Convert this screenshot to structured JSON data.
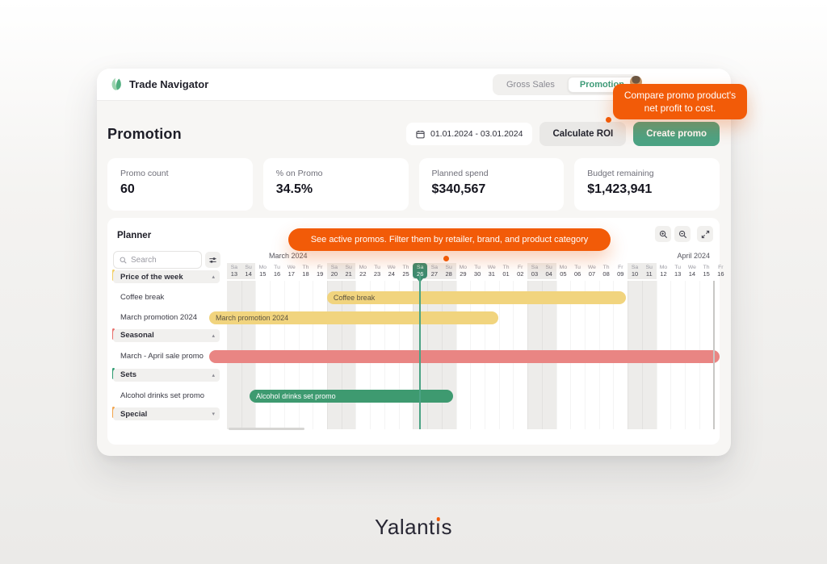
{
  "colors": {
    "orange": "#F25B08",
    "green_button": "#4BA384",
    "today_green": "#3D8B70",
    "yellow_bar": "#F1D47E",
    "red_bar": "#E98583",
    "green_bar": "#3E9A70",
    "accent_yellow": "#F2CE63",
    "accent_red": "#E9706C",
    "accent_green": "#2E9B70",
    "accent_orange": "#F2A44C"
  },
  "header": {
    "app_name": "Trade Navigator",
    "tabs": [
      {
        "label": "Gross Sales",
        "active": false
      },
      {
        "label": "Promotion",
        "active": true
      }
    ]
  },
  "roi_tooltip": {
    "text": "Compare promo product's net profit to cost."
  },
  "page": {
    "title": "Promotion",
    "date_range": "01.01.2024 - 03.01.2024",
    "calculate_roi": "Calculate ROI",
    "create_promo": "Create promo"
  },
  "stats": [
    {
      "label": "Promo count",
      "value": "60"
    },
    {
      "label": "% on Promo",
      "value": "34.5%"
    },
    {
      "label": "Planned spend",
      "value": "$340,567"
    },
    {
      "label": "Budget remaining",
      "value": "$1,423,941"
    }
  ],
  "planner": {
    "title": "Planner",
    "tooltip": "See active promos. Filter them by retailer, brand, and product category",
    "search_placeholder": "Search",
    "groups": [
      {
        "name": "Price of the week",
        "accent": "accent_yellow",
        "collapsed": false,
        "items": [
          "Coffee break",
          "March promotion 2024"
        ]
      },
      {
        "name": "Seasonal",
        "accent": "accent_red",
        "collapsed": false,
        "items": [
          "March - April sale promo"
        ]
      },
      {
        "name": "Sets",
        "accent": "accent_green",
        "collapsed": false,
        "items": [
          "Alcohol drinks set promo"
        ]
      },
      {
        "name": "Special",
        "accent": "accent_orange",
        "collapsed": true,
        "items": []
      }
    ],
    "months": [
      {
        "label": "March 2024",
        "pos": "left"
      },
      {
        "label": "April 2024",
        "pos": "right"
      }
    ],
    "days": [
      {
        "dow": "Sa",
        "num": "13"
      },
      {
        "dow": "Su",
        "num": "14"
      },
      {
        "dow": "Mo",
        "num": "15"
      },
      {
        "dow": "Tu",
        "num": "16"
      },
      {
        "dow": "We",
        "num": "17"
      },
      {
        "dow": "Th",
        "num": "18"
      },
      {
        "dow": "Fr",
        "num": "19"
      },
      {
        "dow": "Sa",
        "num": "20"
      },
      {
        "dow": "Su",
        "num": "21"
      },
      {
        "dow": "Mo",
        "num": "22"
      },
      {
        "dow": "Tu",
        "num": "23"
      },
      {
        "dow": "We",
        "num": "24"
      },
      {
        "dow": "Th",
        "num": "25"
      },
      {
        "dow": "Sa",
        "num": "26"
      },
      {
        "dow": "Sa",
        "num": "27"
      },
      {
        "dow": "Su",
        "num": "28"
      },
      {
        "dow": "Mo",
        "num": "29"
      },
      {
        "dow": "Tu",
        "num": "30"
      },
      {
        "dow": "We",
        "num": "31"
      },
      {
        "dow": "Th",
        "num": "01"
      },
      {
        "dow": "Fr",
        "num": "02"
      },
      {
        "dow": "Sa",
        "num": "03"
      },
      {
        "dow": "Su",
        "num": "04"
      },
      {
        "dow": "Mo",
        "num": "05"
      },
      {
        "dow": "Tu",
        "num": "06"
      },
      {
        "dow": "We",
        "num": "07"
      },
      {
        "dow": "Th",
        "num": "08"
      },
      {
        "dow": "Fr",
        "num": "09"
      },
      {
        "dow": "Sa",
        "num": "10"
      },
      {
        "dow": "Su",
        "num": "11"
      },
      {
        "dow": "Mo",
        "num": "12"
      },
      {
        "dow": "Tu",
        "num": "13"
      },
      {
        "dow": "We",
        "num": "14"
      },
      {
        "dow": "Th",
        "num": "15"
      },
      {
        "dow": "Fr",
        "num": "16"
      }
    ],
    "today_index": 13,
    "weekend_indices": [
      0,
      1,
      7,
      8,
      13,
      14,
      15,
      21,
      22,
      28,
      29
    ],
    "bars": [
      {
        "name": "coffee-break",
        "label": "Coffee break",
        "row": 1,
        "left": "20.3%",
        "width": "60.7%",
        "bg": "yellow_bar",
        "fg": "#5b5340",
        "striped": false
      },
      {
        "name": "march-promotion-2024",
        "label": "March promotion 2024",
        "row": 2,
        "left": "-3.6%",
        "width": "58.6%",
        "bg": "yellow_bar",
        "fg": "#5b5340",
        "striped": false
      },
      {
        "name": "march-april-sale-promo",
        "label": "",
        "row": 4,
        "left": "-3.6%",
        "width": "103.6%",
        "bg": "red_bar",
        "fg": "#ffffff",
        "striped": false
      },
      {
        "name": "alcohol-drinks-set-promo",
        "label": "Alcohol drinks set promo",
        "row": 6,
        "left": "4.6%",
        "width": "41.3%",
        "bg": "green_bar",
        "fg": "#ffffff",
        "striped": true
      }
    ]
  },
  "footer": {
    "brand": "Yalantis"
  }
}
